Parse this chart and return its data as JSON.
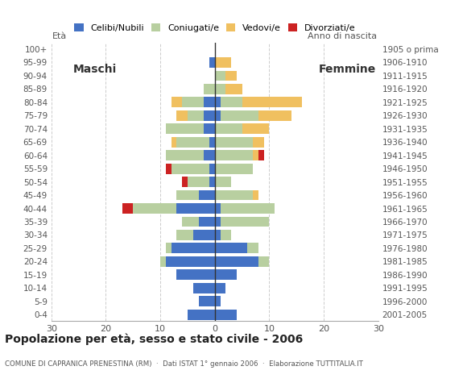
{
  "age_groups": [
    "0-4",
    "5-9",
    "10-14",
    "15-19",
    "20-24",
    "25-29",
    "30-34",
    "35-39",
    "40-44",
    "45-49",
    "50-54",
    "55-59",
    "60-64",
    "65-69",
    "70-74",
    "75-79",
    "80-84",
    "85-89",
    "90-94",
    "95-99",
    "100+"
  ],
  "birth_years": [
    "2001-2005",
    "1996-2000",
    "1991-1995",
    "1986-1990",
    "1981-1985",
    "1976-1980",
    "1971-1975",
    "1966-1970",
    "1961-1965",
    "1956-1960",
    "1951-1955",
    "1946-1950",
    "1941-1945",
    "1936-1940",
    "1931-1935",
    "1926-1930",
    "1921-1925",
    "1916-1920",
    "1911-1915",
    "1906-1910",
    "1905 o prima"
  ],
  "males": {
    "celibi": [
      5,
      3,
      4,
      7,
      9,
      8,
      4,
      3,
      7,
      3,
      1,
      1,
      2,
      1,
      2,
      2,
      2,
      0,
      0,
      1,
      0
    ],
    "coniugati": [
      0,
      0,
      0,
      0,
      1,
      1,
      3,
      3,
      8,
      4,
      4,
      7,
      7,
      6,
      7,
      3,
      4,
      2,
      0,
      0,
      0
    ],
    "vedovi": [
      0,
      0,
      0,
      0,
      0,
      0,
      0,
      0,
      0,
      0,
      0,
      0,
      0,
      1,
      0,
      2,
      2,
      0,
      0,
      0,
      0
    ],
    "divorziati": [
      0,
      0,
      0,
      0,
      0,
      0,
      0,
      0,
      2,
      0,
      1,
      1,
      0,
      0,
      0,
      0,
      0,
      0,
      0,
      0,
      0
    ]
  },
  "females": {
    "celibi": [
      4,
      1,
      2,
      4,
      8,
      6,
      1,
      1,
      1,
      0,
      0,
      0,
      0,
      0,
      0,
      1,
      1,
      0,
      0,
      0,
      0
    ],
    "coniugati": [
      0,
      0,
      0,
      0,
      2,
      2,
      2,
      9,
      10,
      7,
      3,
      7,
      7,
      7,
      5,
      7,
      4,
      2,
      2,
      0,
      0
    ],
    "vedovi": [
      0,
      0,
      0,
      0,
      0,
      0,
      0,
      0,
      0,
      1,
      0,
      0,
      1,
      2,
      5,
      6,
      11,
      3,
      2,
      3,
      0
    ],
    "divorziati": [
      0,
      0,
      0,
      0,
      0,
      0,
      0,
      0,
      0,
      0,
      0,
      0,
      1,
      0,
      0,
      0,
      0,
      0,
      0,
      0,
      0
    ]
  },
  "colors": {
    "celibi": "#4472c4",
    "coniugati": "#b8cfa0",
    "vedovi": "#f0c060",
    "divorziati": "#cc2222"
  },
  "xlim": 30,
  "title": "Popolazione per età, sesso e stato civile - 2006",
  "subtitle": "COMUNE DI CAPRANICA PRENESTINA (RM)  ·  Dati ISTAT 1° gennaio 2006  ·  Elaborazione TUTTITALIA.IT",
  "xlabel_left": "Maschi",
  "xlabel_right": "Femmine",
  "ylabel_left": "Età",
  "ylabel_right": "Anno di nascita",
  "legend_labels": [
    "Celibi/Nubili",
    "Coniugati/e",
    "Vedovi/e",
    "Divorziati/e"
  ],
  "xticks": [
    -30,
    -20,
    -10,
    0,
    10,
    20,
    30
  ],
  "xticklabels": [
    "30",
    "20",
    "10",
    "0",
    "10",
    "20",
    "30"
  ]
}
